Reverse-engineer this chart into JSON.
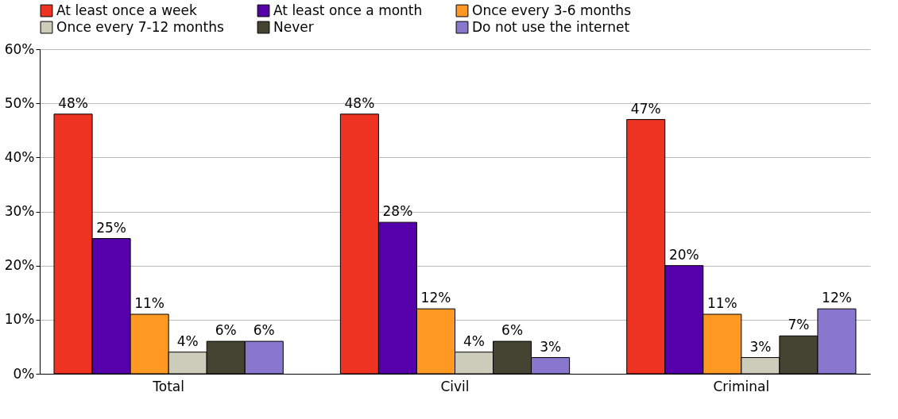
{
  "chart_data": {
    "type": "bar",
    "categories": [
      "Total",
      "Civil",
      "Criminal"
    ],
    "series": [
      {
        "name": "At least once a week",
        "color": "#ee3322",
        "values": [
          48,
          48,
          47
        ],
        "value_labels": [
          "48%",
          "48%",
          "47%"
        ]
      },
      {
        "name": "At least once a month",
        "color": "#5500aa",
        "values": [
          25,
          28,
          20
        ],
        "value_labels": [
          "25%",
          "28%",
          "20%"
        ]
      },
      {
        "name": "Once every 3-6 months",
        "color": "#ff9922",
        "values": [
          11,
          12,
          11
        ],
        "value_labels": [
          "11%",
          "12%",
          "11%"
        ]
      },
      {
        "name": "Once every 7-12 months",
        "color": "#ccccbb",
        "values": [
          4,
          4,
          3
        ],
        "value_labels": [
          "4%",
          "4%",
          "3%"
        ]
      },
      {
        "name": "Never",
        "color": "#444433",
        "values": [
          6,
          6,
          7
        ],
        "value_labels": [
          "6%",
          "6%",
          "7%"
        ]
      },
      {
        "name": "Do not use the internet",
        "color": "#8877cc",
        "values": [
          6,
          3,
          12
        ],
        "value_labels": [
          "6%",
          "3%",
          "12%"
        ]
      }
    ],
    "ylim": [
      0,
      60
    ],
    "yticks": [
      {
        "value": 0,
        "label": "0%"
      },
      {
        "value": 10,
        "label": "10%"
      },
      {
        "value": 20,
        "label": "20%"
      },
      {
        "value": 30,
        "label": "30%"
      },
      {
        "value": 40,
        "label": "40%"
      },
      {
        "value": 50,
        "label": "50%"
      },
      {
        "value": 60,
        "label": "60%"
      }
    ],
    "grid": "y",
    "legend": "top"
  }
}
